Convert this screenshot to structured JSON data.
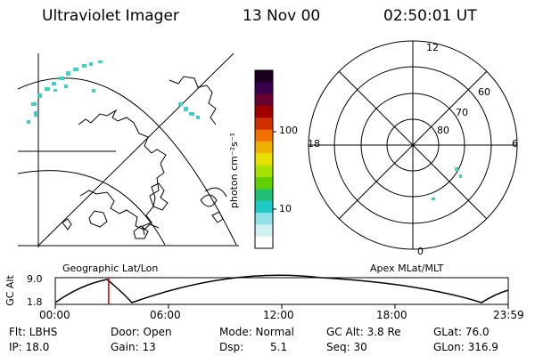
{
  "header": {
    "instrument": "Ultraviolet Imager",
    "date": "13 Nov 00",
    "time": "02:50:01 UT"
  },
  "colorbar": {
    "unit_label": "photon cm⁻²s⁻¹",
    "ticks": [
      {
        "label": "100",
        "value": 100
      },
      {
        "label": "10",
        "value": 10
      }
    ],
    "colors": [
      "#1a0020",
      "#3a0050",
      "#6a0030",
      "#a00000",
      "#d03000",
      "#f07000",
      "#f0b000",
      "#e8e000",
      "#a8e000",
      "#60d000",
      "#20c070",
      "#20c8c8",
      "#90e0e8",
      "#d0f0f4",
      "#ffffff"
    ]
  },
  "map_labels": {
    "geographic": "Geographic Lat/Lon",
    "apex": "Apex MLat/MLT"
  },
  "polar_plot": {
    "mlt_labels": {
      "top": "12",
      "left": "18",
      "right": "6",
      "bottom": "0"
    },
    "lat_labels": [
      "60",
      "70",
      "80"
    ]
  },
  "altitude_plot": {
    "ylabel": "GC Alt",
    "yticks": [
      "9.0",
      "1.8"
    ],
    "xticks": [
      "00:00",
      "06:00",
      "12:00",
      "18:00",
      "23:59"
    ],
    "current_marker_hour": 2.83
  },
  "status": {
    "filter": "Flt: LBHS",
    "ip": "IP: 18.0",
    "door": "Door: Open",
    "gain": "Gain: 13",
    "mode": "Mode: Normal",
    "dsp_label": "Dsp:",
    "dsp_value": "5.1",
    "gc_alt": "GC Alt: 3.8 Re",
    "seq": "Seq: 30",
    "glat": "GLat: 76.0",
    "glon": "GLon: 316.9"
  },
  "colors": {
    "marker": "#cc0000",
    "aurora": "#40d0c8"
  }
}
